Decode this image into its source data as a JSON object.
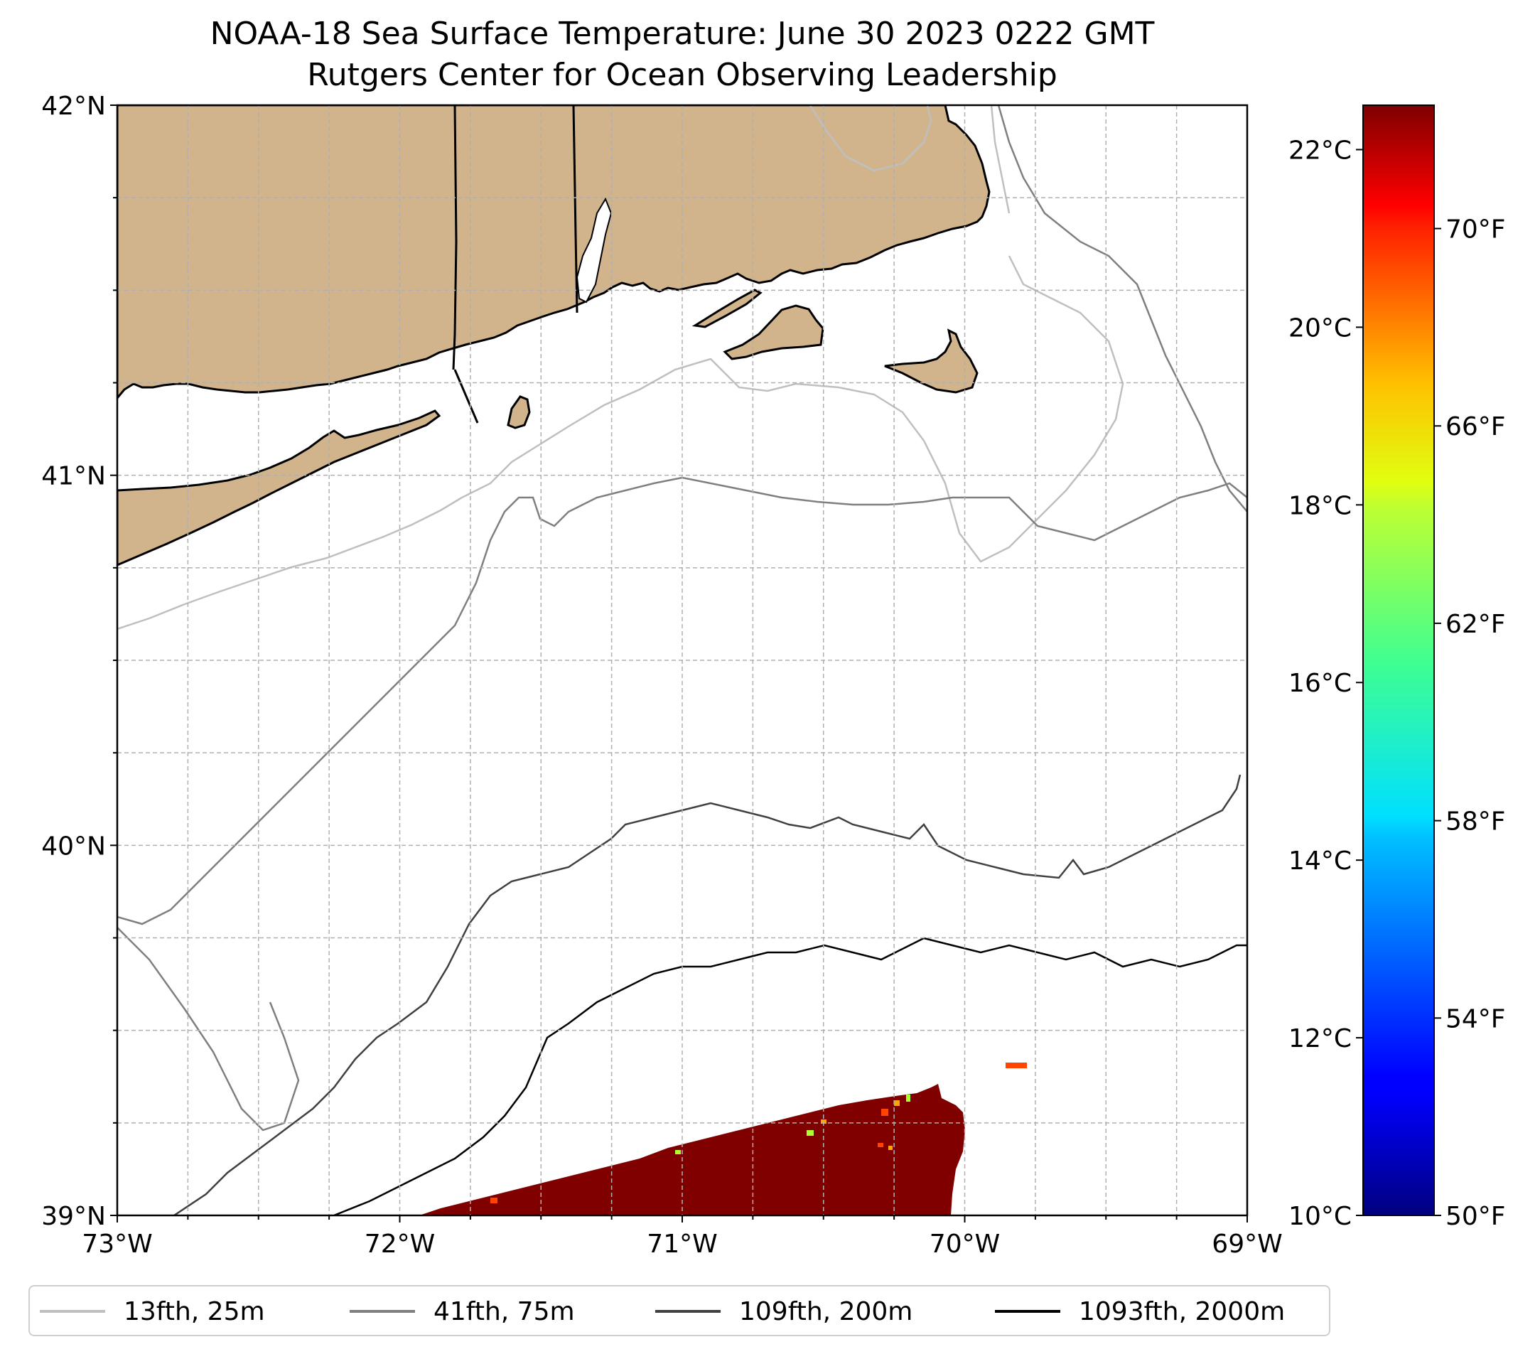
{
  "title": {
    "line1": "NOAA-18 Sea Surface Temperature: June 30 2023 0222 GMT",
    "line2": "Rutgers Center for Ocean Observing Leadership"
  },
  "map": {
    "lon_range": [
      -73,
      -69
    ],
    "lat_range": [
      39,
      42
    ],
    "land_color": "#d2b48c",
    "grid": "on, dashed light gray",
    "lat_ticks": [
      {
        "value": 42,
        "label": "42°N"
      },
      {
        "value": 41,
        "label": "41°N"
      },
      {
        "value": 40,
        "label": "40°N"
      },
      {
        "value": 39,
        "label": "39°N"
      }
    ],
    "lon_ticks": [
      {
        "value": -73,
        "label": "73°W"
      },
      {
        "value": -72,
        "label": "72°W"
      },
      {
        "value": -71,
        "label": "71°W"
      },
      {
        "value": -70,
        "label": "70°W"
      },
      {
        "value": -69,
        "label": "69°W"
      }
    ],
    "sst_patch": {
      "color": "#800000",
      "accent_colors": [
        "#ff4500",
        "#ffa500",
        "#adff2f"
      ]
    }
  },
  "colorbar": {
    "colormap": "jet",
    "range_c": [
      10,
      22.5
    ],
    "celsius_ticks": [
      {
        "value": 22,
        "label": "22°C"
      },
      {
        "value": 20,
        "label": "20°C"
      },
      {
        "value": 18,
        "label": "18°C"
      },
      {
        "value": 16,
        "label": "16°C"
      },
      {
        "value": 14,
        "label": "14°C"
      },
      {
        "value": 12,
        "label": "12°C"
      },
      {
        "value": 10,
        "label": "10°C"
      }
    ],
    "fahrenheit_ticks": [
      {
        "value": 70,
        "label": "70°F"
      },
      {
        "value": 66,
        "label": "66°F"
      },
      {
        "value": 62,
        "label": "62°F"
      },
      {
        "value": 58,
        "label": "58°F"
      },
      {
        "value": 54,
        "label": "54°F"
      },
      {
        "value": 50,
        "label": "50°F"
      }
    ]
  },
  "legend": {
    "items": [
      {
        "label": "13fth, 25m",
        "color": "#bfbfbf"
      },
      {
        "label": "41fth, 75m",
        "color": "#7f7f7f"
      },
      {
        "label": "109fth, 200m",
        "color": "#404040"
      },
      {
        "label": "1093fth, 2000m",
        "color": "#000000"
      }
    ]
  }
}
